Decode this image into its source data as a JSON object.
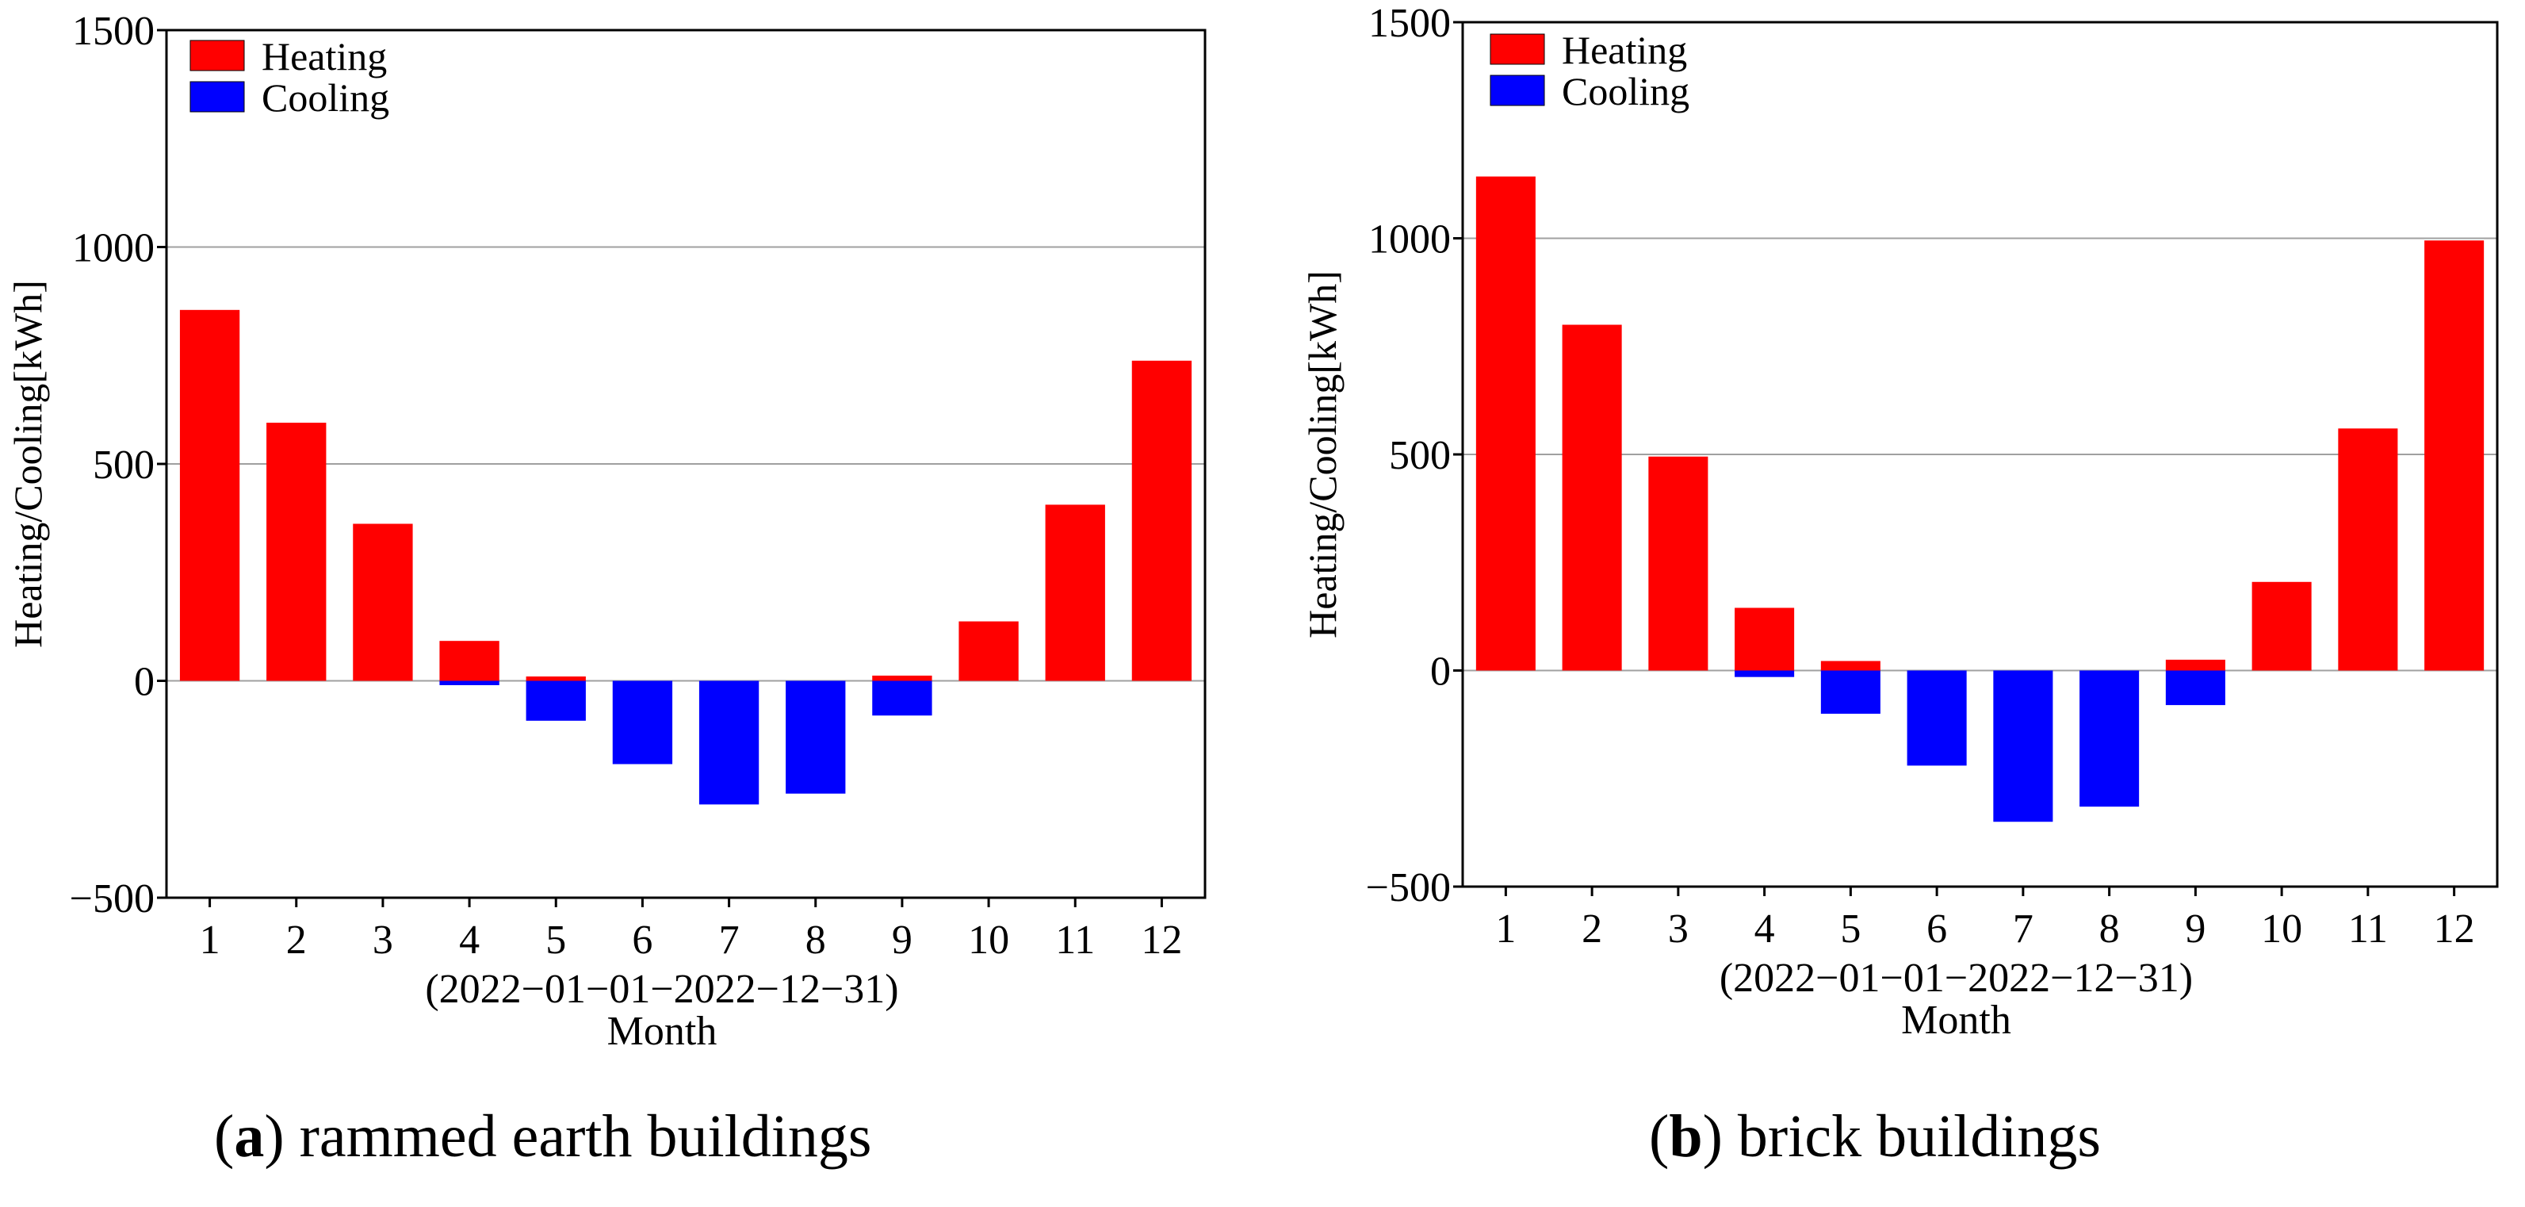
{
  "colors": {
    "heating": "#ff0000",
    "cooling": "#0000ff",
    "grid": "#a0a0a0",
    "axis": "#000000"
  },
  "chart_data": [
    {
      "type": "bar",
      "panel_letter": "a",
      "caption": "rammed earth buildings",
      "categories": [
        "1",
        "2",
        "3",
        "4",
        "5",
        "6",
        "7",
        "8",
        "9",
        "10",
        "11",
        "12"
      ],
      "series": [
        {
          "name": "Heating",
          "values": [
            855,
            595,
            362,
            92,
            10,
            0,
            0,
            0,
            12,
            137,
            406,
            738
          ]
        },
        {
          "name": "Cooling",
          "values": [
            0,
            0,
            0,
            -10,
            -92,
            -192,
            -285,
            -260,
            -80,
            0,
            0,
            0
          ]
        }
      ],
      "yticks": [
        "1500",
        "1000",
        "500",
        "0",
        "−500"
      ],
      "ytick_values": [
        1500,
        1000,
        500,
        0,
        -500
      ],
      "ylim": [
        -500,
        1500
      ],
      "ylabel": "Heating/Cooling[kWh]",
      "xlabel_range": "(2022−01−01−2022−12−31)",
      "xlabel": "Month",
      "legend": [
        "Heating",
        "Cooling"
      ],
      "grid": true
    },
    {
      "type": "bar",
      "panel_letter": "b",
      "caption": "brick buildings",
      "categories": [
        "1",
        "2",
        "3",
        "4",
        "5",
        "6",
        "7",
        "8",
        "9",
        "10",
        "11",
        "12"
      ],
      "series": [
        {
          "name": "Heating",
          "values": [
            1143,
            800,
            495,
            145,
            22,
            0,
            0,
            0,
            25,
            205,
            560,
            995
          ]
        },
        {
          "name": "Cooling",
          "values": [
            0,
            0,
            0,
            -15,
            -100,
            -220,
            -350,
            -315,
            -80,
            0,
            0,
            0
          ]
        }
      ],
      "yticks": [
        "1500",
        "1000",
        "500",
        "0",
        "−500"
      ],
      "ytick_values": [
        1500,
        1000,
        500,
        0,
        -500
      ],
      "ylim": [
        -500,
        1500
      ],
      "ylabel": "Heating/Cooling[kWh]",
      "xlabel_range": "(2022−01−01−2022−12−31)",
      "xlabel": "Month",
      "legend": [
        "Heating",
        "Cooling"
      ],
      "grid": true
    }
  ]
}
